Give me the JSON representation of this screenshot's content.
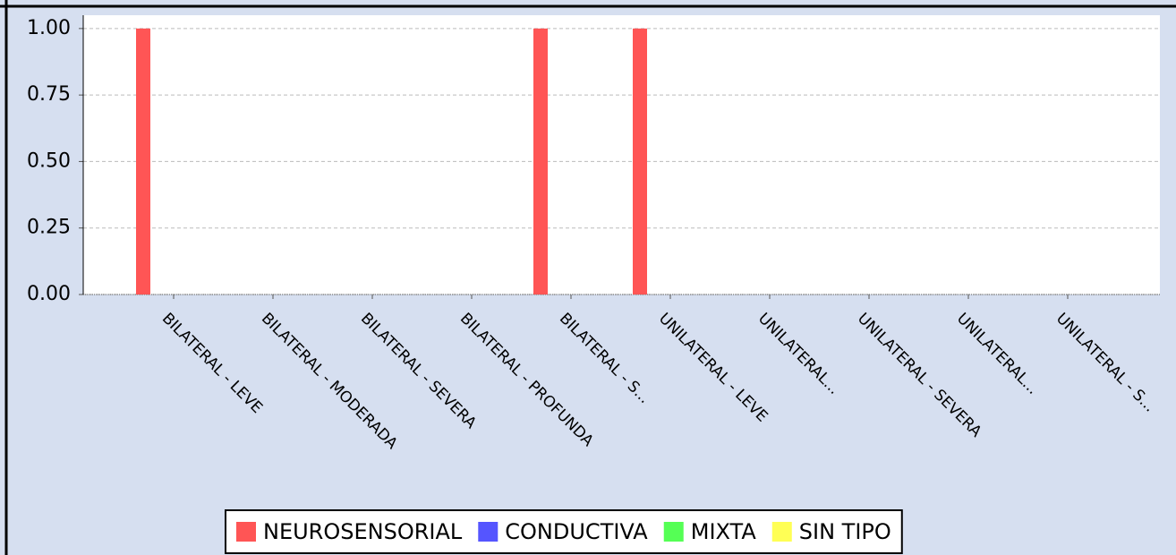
{
  "chart_data": {
    "type": "bar",
    "categories": [
      "BILATERAL - LEVE",
      "BILATERAL - MODERADA",
      "BILATERAL - SEVERA",
      "BILATERAL - PROFUNDA",
      "BILATERAL - S...",
      "UNILATERAL - LEVE",
      "UNILATERAL...",
      "UNILATERAL - SEVERA",
      "UNILATERAL...",
      "UNILATERAL - S..."
    ],
    "series": [
      {
        "name": "NEUROSENSORIAL",
        "color": "#ff5555",
        "values": [
          1,
          0,
          0,
          0,
          1,
          1,
          0,
          0,
          0,
          0
        ]
      },
      {
        "name": "CONDUCTIVA",
        "color": "#5555ff",
        "values": [
          0,
          0,
          0,
          0,
          0,
          0,
          0,
          0,
          0,
          0
        ]
      },
      {
        "name": "MIXTA",
        "color": "#55ff55",
        "values": [
          0,
          0,
          0,
          0,
          0,
          0,
          0,
          0,
          0,
          0
        ]
      },
      {
        "name": "SIN TIPO",
        "color": "#ffff55",
        "values": [
          0,
          0,
          0,
          0,
          0,
          0,
          0,
          0,
          0,
          0
        ]
      }
    ],
    "ylim": [
      0,
      1.05
    ],
    "yticks": [
      {
        "value": 0,
        "label": "0.00"
      },
      {
        "value": 0.25,
        "label": "0.25"
      },
      {
        "value": 0.5,
        "label": "0.50"
      },
      {
        "value": 0.75,
        "label": "0.75"
      },
      {
        "value": 1,
        "label": "1.00"
      }
    ],
    "grid": true,
    "legend": "bottom"
  }
}
